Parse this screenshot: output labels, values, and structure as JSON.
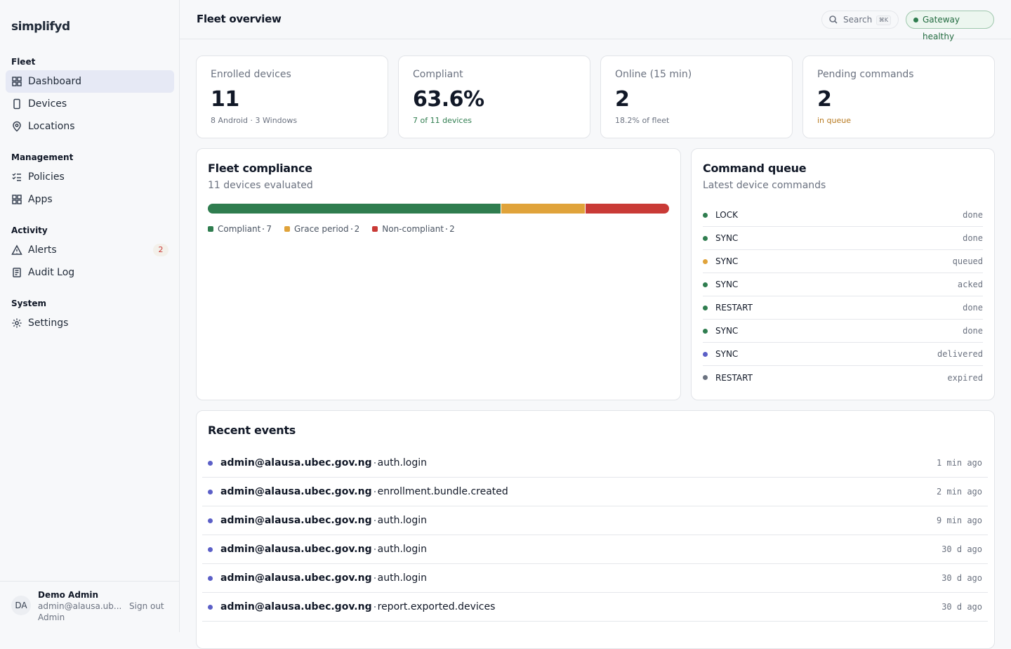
{
  "sidebar": {
    "logo": "simplifyd",
    "sections": [
      {
        "title": "Fleet",
        "items": [
          {
            "label": "Dashboard",
            "active": true
          },
          {
            "label": "Devices"
          },
          {
            "label": "Locations"
          }
        ]
      },
      {
        "title": "Management",
        "items": [
          {
            "label": "Policies"
          },
          {
            "label": "Apps"
          }
        ]
      },
      {
        "title": "Activity",
        "items": [
          {
            "label": "Alerts",
            "badge": "2"
          },
          {
            "label": "Audit Log"
          }
        ]
      },
      {
        "title": "System",
        "items": [
          {
            "label": "Settings"
          }
        ]
      }
    ],
    "user": {
      "initials": "DA",
      "name": "Demo Admin",
      "email": "admin@alausa.ub...",
      "role": "Admin",
      "signout": "Sign out"
    }
  },
  "header": {
    "title": "Fleet overview",
    "search": "Search",
    "shortcut": "⌘K",
    "status": "Gateway healthy"
  },
  "stats": [
    {
      "label": "Enrolled devices",
      "value": "11",
      "note": "8 Android · 3 Windows",
      "note_color": "#6b7280"
    },
    {
      "label": "Compliant",
      "value": "63.6%",
      "note": "7 of 11 devices",
      "note_color": "#2f7d4f"
    },
    {
      "label": "Online (15 min)",
      "value": "2",
      "note": "18.2% of fleet",
      "note_color": "#6b7280"
    },
    {
      "label": "Pending commands",
      "value": "2",
      "note": "in queue",
      "note_color": "#b7791f"
    }
  ],
  "compliance": {
    "title": "Fleet compliance",
    "subtitle": "11 devices evaluated",
    "segments": [
      {
        "name": "Compliant",
        "value": 7,
        "color": "#2f7d4f"
      },
      {
        "name": "Grace period",
        "value": 2,
        "color": "#e0a33a"
      },
      {
        "name": "Non-compliant",
        "value": 2,
        "color": "#c93a36"
      }
    ]
  },
  "queue": {
    "title": "Command queue",
    "subtitle": "Latest device commands",
    "rows": [
      {
        "command": "LOCK",
        "status": "done",
        "color": "#2f7d4f"
      },
      {
        "command": "SYNC",
        "status": "done",
        "color": "#2f7d4f"
      },
      {
        "command": "SYNC",
        "status": "queued",
        "color": "#e0a33a"
      },
      {
        "command": "SYNC",
        "status": "acked",
        "color": "#2f7d4f"
      },
      {
        "command": "RESTART",
        "status": "done",
        "color": "#2f7d4f"
      },
      {
        "command": "SYNC",
        "status": "done",
        "color": "#2f7d4f"
      },
      {
        "command": "SYNC",
        "status": "delivered",
        "color": "#5b5fc7"
      },
      {
        "command": "RESTART",
        "status": "expired",
        "color": "#6b7280"
      }
    ]
  },
  "events": {
    "title": "Recent events",
    "rows": [
      {
        "actor": "admin@alausa.ubec.gov.ng",
        "action": "auth.login",
        "time": "1 min ago"
      },
      {
        "actor": "admin@alausa.ubec.gov.ng",
        "action": "enrollment.bundle.created",
        "time": "2 min ago"
      },
      {
        "actor": "admin@alausa.ubec.gov.ng",
        "action": "auth.login",
        "time": "9 min ago"
      },
      {
        "actor": "admin@alausa.ubec.gov.ng",
        "action": "auth.login",
        "time": "30 d ago"
      },
      {
        "actor": "admin@alausa.ubec.gov.ng",
        "action": "auth.login",
        "time": "30 d ago"
      },
      {
        "actor": "admin@alausa.ubec.gov.ng",
        "action": "report.exported.devices",
        "time": "30 d ago"
      }
    ]
  }
}
